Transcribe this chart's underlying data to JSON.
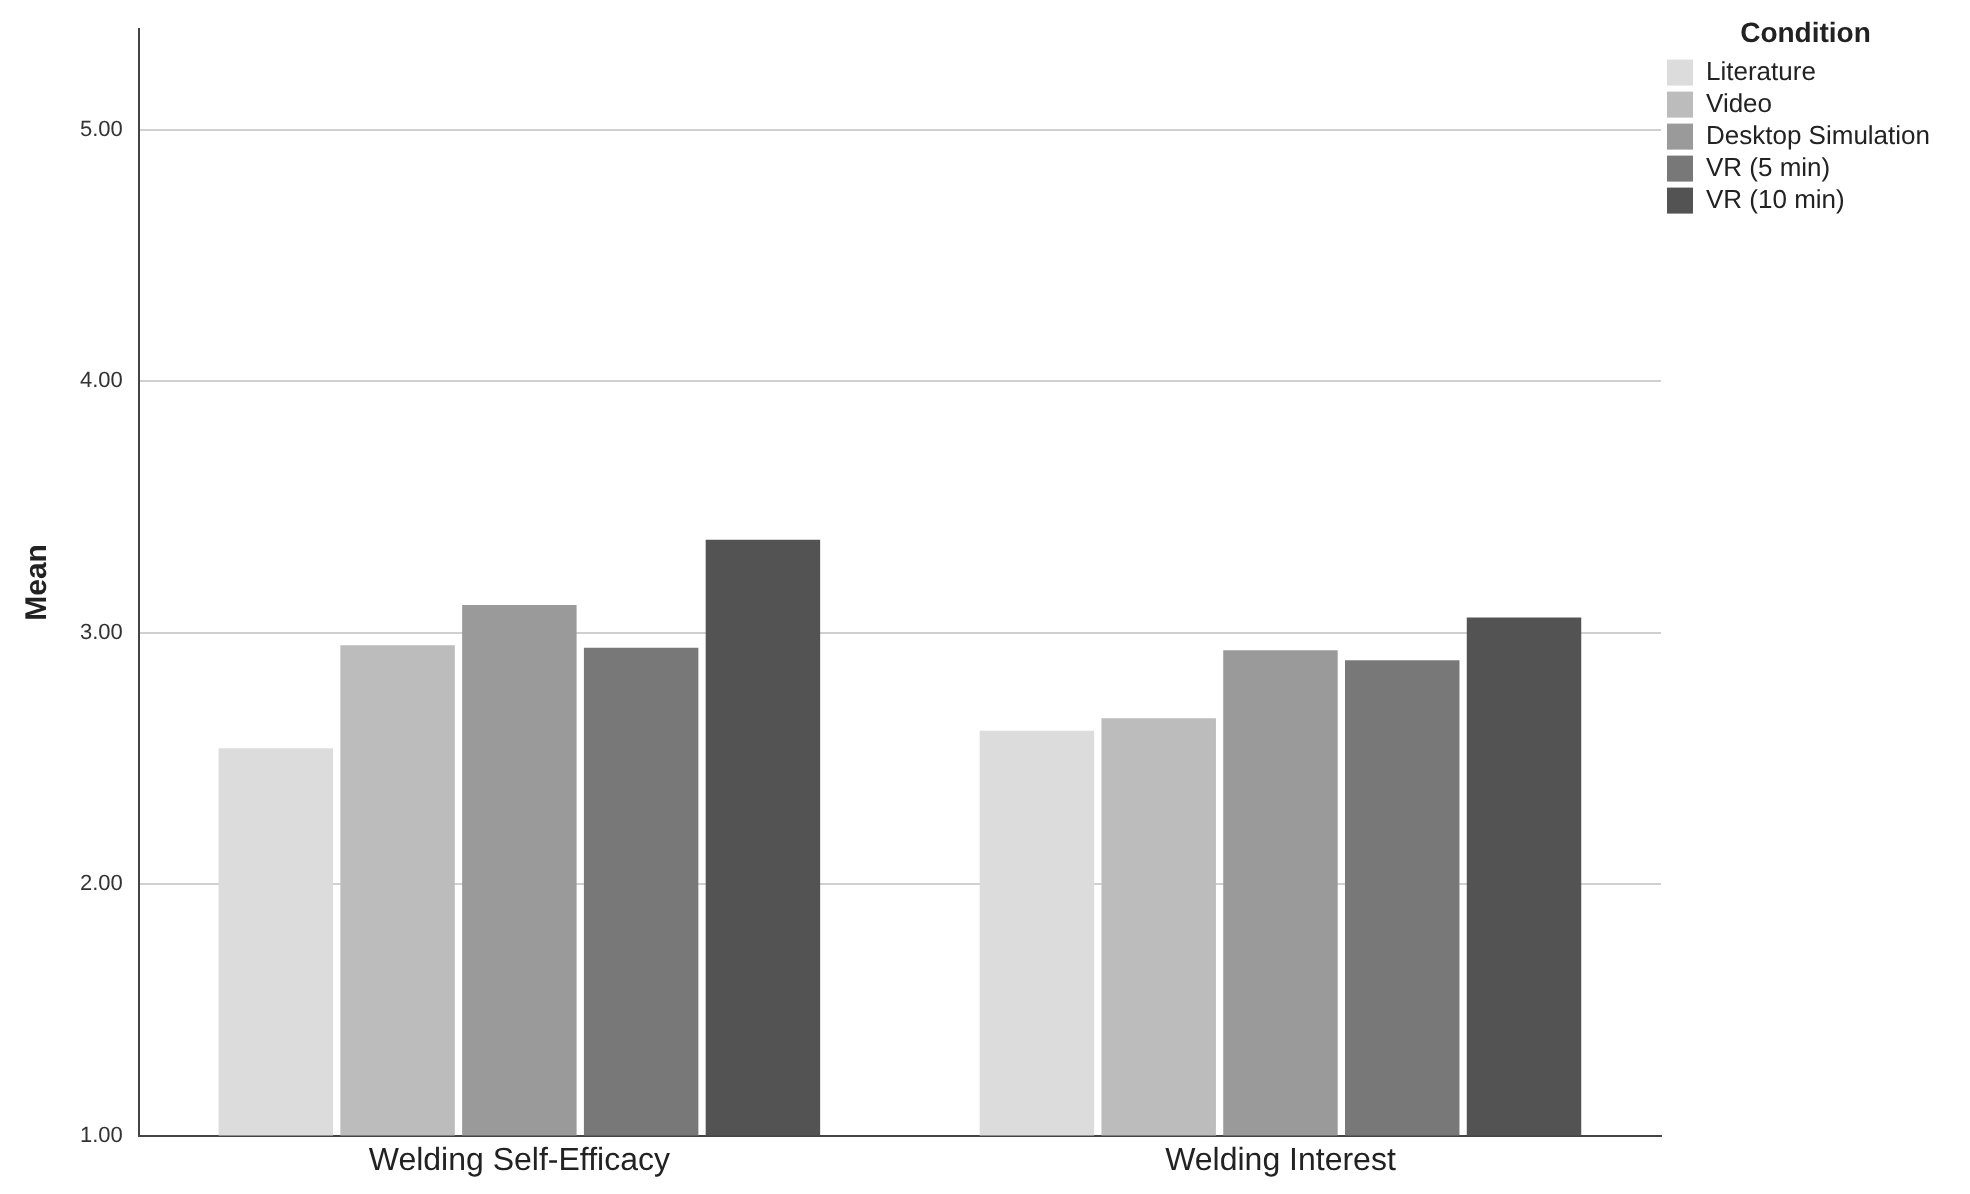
{
  "chart_data": {
    "type": "bar",
    "ylabel": "Mean",
    "legend_title": "Condition",
    "legend": "top right",
    "grid": "y",
    "categories": [
      "Welding Self-Efficacy",
      "Welding Interest"
    ],
    "series": [
      {
        "name": "Literature",
        "color": "#dcdcdc",
        "values": [
          2.54,
          2.61
        ]
      },
      {
        "name": "Video",
        "color": "#bcbcbc",
        "values": [
          2.95,
          2.66
        ]
      },
      {
        "name": "Desktop Simulation",
        "color": "#9a9a9a",
        "values": [
          3.11,
          2.93
        ]
      },
      {
        "name": "VR (5 min)",
        "color": "#787878",
        "values": [
          2.94,
          2.89
        ]
      },
      {
        "name": "VR (10 min)",
        "color": "#535353",
        "values": [
          3.37,
          3.06
        ]
      }
    ],
    "ylim": [
      1,
      5.4
    ],
    "yticks": [
      {
        "value": 1,
        "label": "1.00"
      },
      {
        "value": 2,
        "label": "2.00"
      },
      {
        "value": 3,
        "label": "3.00"
      },
      {
        "value": 4,
        "label": "4.00"
      },
      {
        "value": 5,
        "label": "5.00"
      }
    ]
  }
}
